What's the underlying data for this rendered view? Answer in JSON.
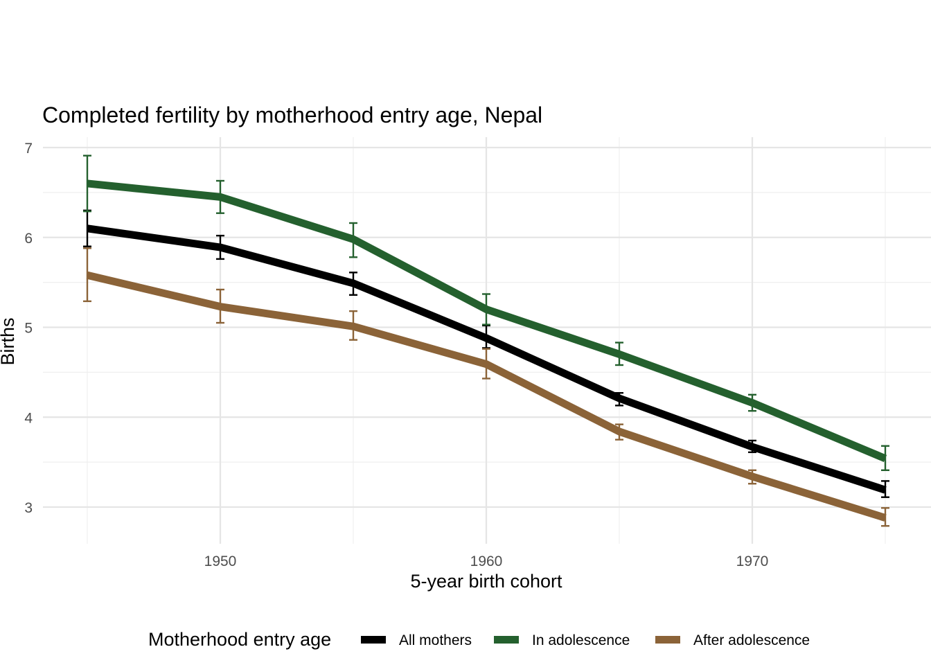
{
  "chart_data": {
    "type": "line",
    "title": "Completed fertility by motherhood entry age,  Nepal",
    "xlabel": "5-year birth cohort",
    "ylabel": "Births",
    "x": [
      1945,
      1950,
      1955,
      1960,
      1965,
      1970,
      1975
    ],
    "xlim": [
      1942.5,
      1977.5
    ],
    "ylim": [
      2.6,
      7.1
    ],
    "x_ticks": [
      1950,
      1960,
      1970
    ],
    "x_tick_labels": [
      "1950",
      "1960",
      "1970"
    ],
    "y_ticks": [
      3,
      4,
      5,
      6,
      7
    ],
    "y_tick_labels": [
      "3",
      "4",
      "5",
      "6",
      "7"
    ],
    "grid": true,
    "error_bars": true,
    "legend": {
      "title": "Motherhood entry age",
      "position": "bottom"
    },
    "series": [
      {
        "name": "All mothers",
        "color": "#000000",
        "values": [
          6.1,
          5.89,
          5.49,
          4.88,
          4.21,
          3.67,
          3.19
        ],
        "lower": [
          5.9,
          5.76,
          5.36,
          4.77,
          4.13,
          3.61,
          3.11
        ],
        "upper": [
          6.3,
          6.02,
          5.61,
          5.02,
          4.27,
          3.74,
          3.29
        ]
      },
      {
        "name": "In adolescence",
        "color": "#24602E",
        "values": [
          6.6,
          6.45,
          5.98,
          5.2,
          4.7,
          4.16,
          3.54
        ],
        "lower": [
          6.29,
          6.27,
          5.78,
          5.03,
          4.58,
          4.07,
          3.41
        ],
        "upper": [
          6.91,
          6.63,
          6.16,
          5.37,
          4.83,
          4.25,
          3.68
        ]
      },
      {
        "name": "After adolescence",
        "color": "#8B6338",
        "values": [
          5.58,
          5.23,
          5.01,
          4.59,
          3.84,
          3.34,
          2.88
        ],
        "lower": [
          5.29,
          5.05,
          4.86,
          4.43,
          3.75,
          3.26,
          2.79
        ],
        "upper": [
          5.88,
          5.42,
          5.18,
          4.76,
          3.92,
          3.41,
          2.99
        ]
      }
    ]
  }
}
